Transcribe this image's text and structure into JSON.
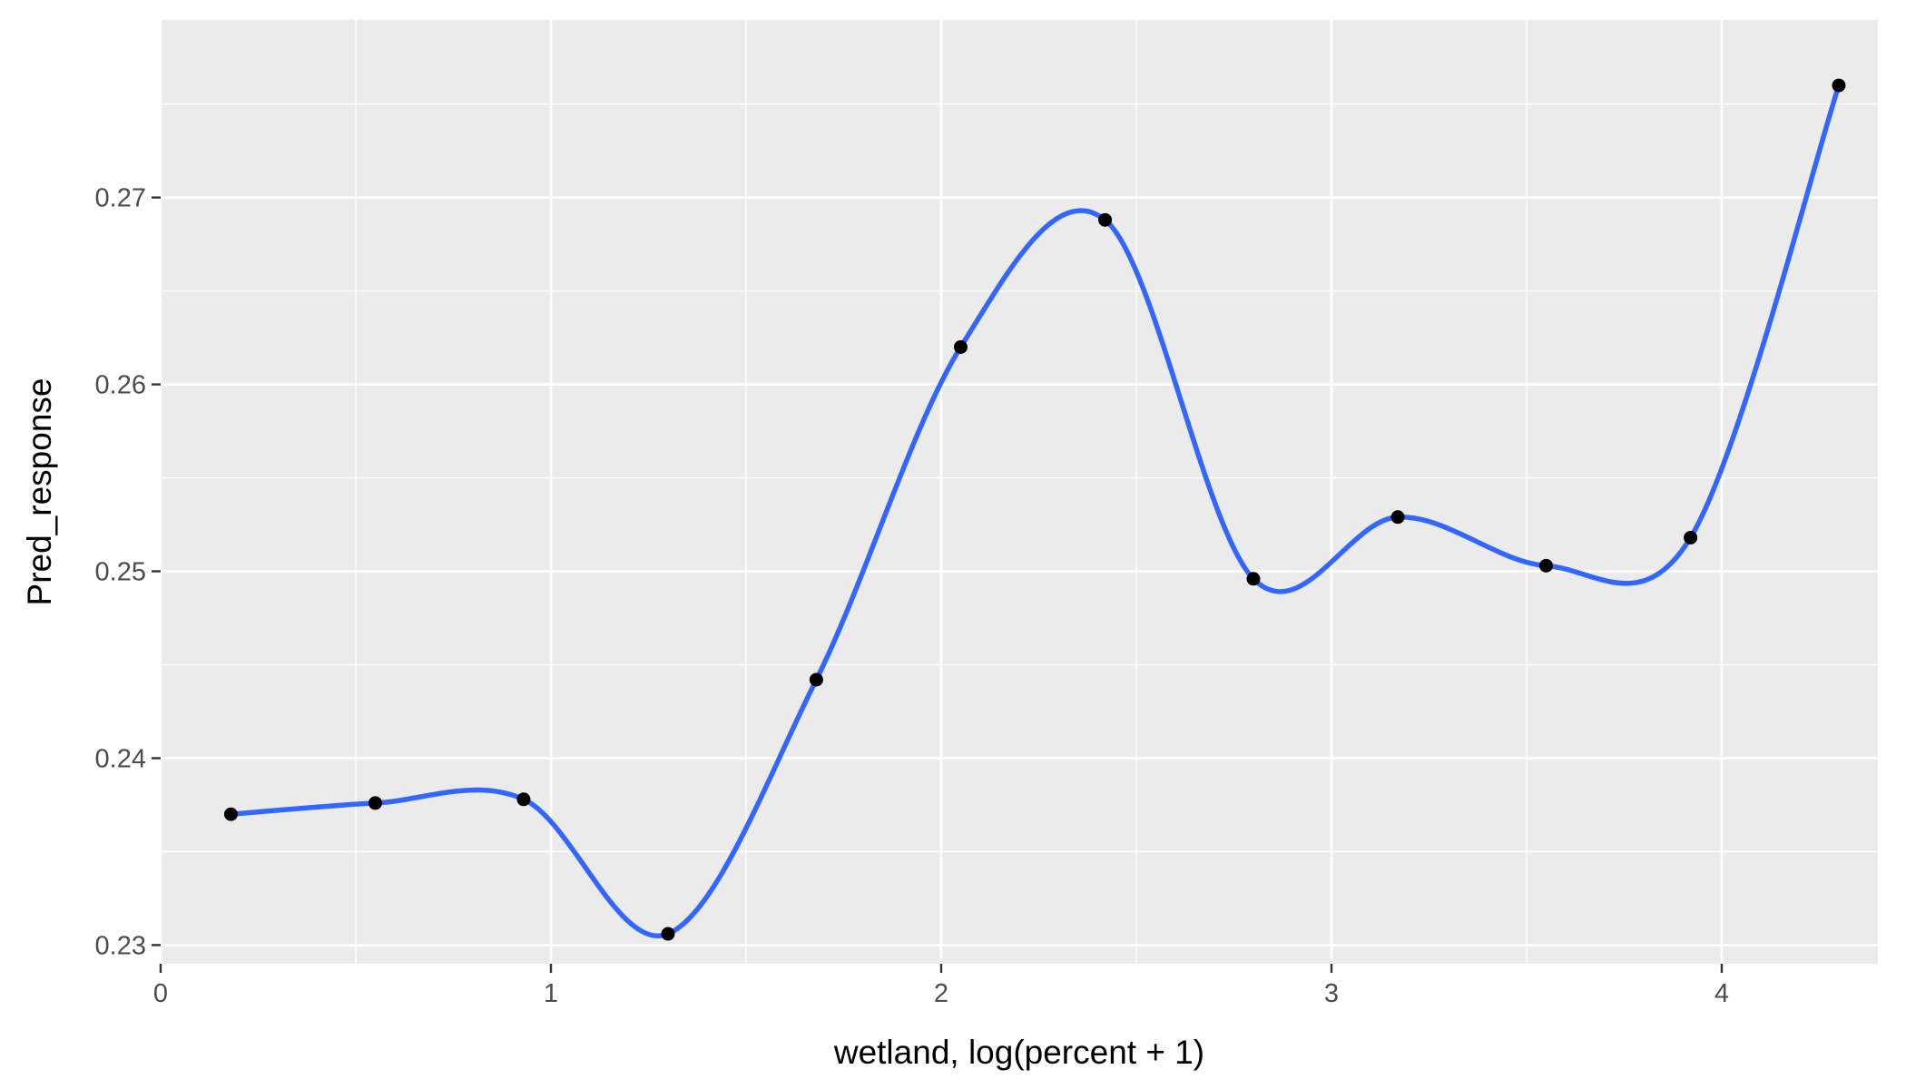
{
  "chart_data": {
    "type": "line",
    "xlabel": "wetland, log(percent + 1)",
    "ylabel": "Pred_response",
    "xlim": [
      0,
      4.4
    ],
    "ylim": [
      0.229,
      0.2795
    ],
    "x_ticks": [
      0,
      1,
      2,
      3,
      4
    ],
    "x_tick_labels": [
      "0",
      "1",
      "2",
      "3",
      "4"
    ],
    "y_ticks": [
      0.23,
      0.24,
      0.25,
      0.26,
      0.27
    ],
    "y_tick_labels": [
      "0.23",
      "0.24",
      "0.25",
      "0.26",
      "0.27"
    ],
    "grid": true,
    "legend": "none",
    "colors": {
      "panel": "#EBEBEB",
      "line": "#3366FF",
      "points": "#000000"
    },
    "series": [
      {
        "kind": "smooth-line",
        "x": [
          0.18,
          0.55,
          0.93,
          1.3,
          1.68,
          2.05,
          2.42,
          2.8,
          3.17,
          3.55,
          3.92,
          4.3
        ],
        "values": [
          0.237,
          0.2376,
          0.2378,
          0.2306,
          0.2442,
          0.262,
          0.2688,
          0.2496,
          0.2529,
          0.2503,
          0.2518,
          0.276
        ]
      },
      {
        "kind": "points",
        "x": [
          0.18,
          0.55,
          0.93,
          1.3,
          1.68,
          2.05,
          2.42,
          2.8,
          3.17,
          3.55,
          3.92,
          4.3
        ],
        "values": [
          0.237,
          0.2376,
          0.2378,
          0.2306,
          0.2442,
          0.262,
          0.2688,
          0.2496,
          0.2529,
          0.2503,
          0.2518,
          0.276
        ]
      }
    ]
  }
}
